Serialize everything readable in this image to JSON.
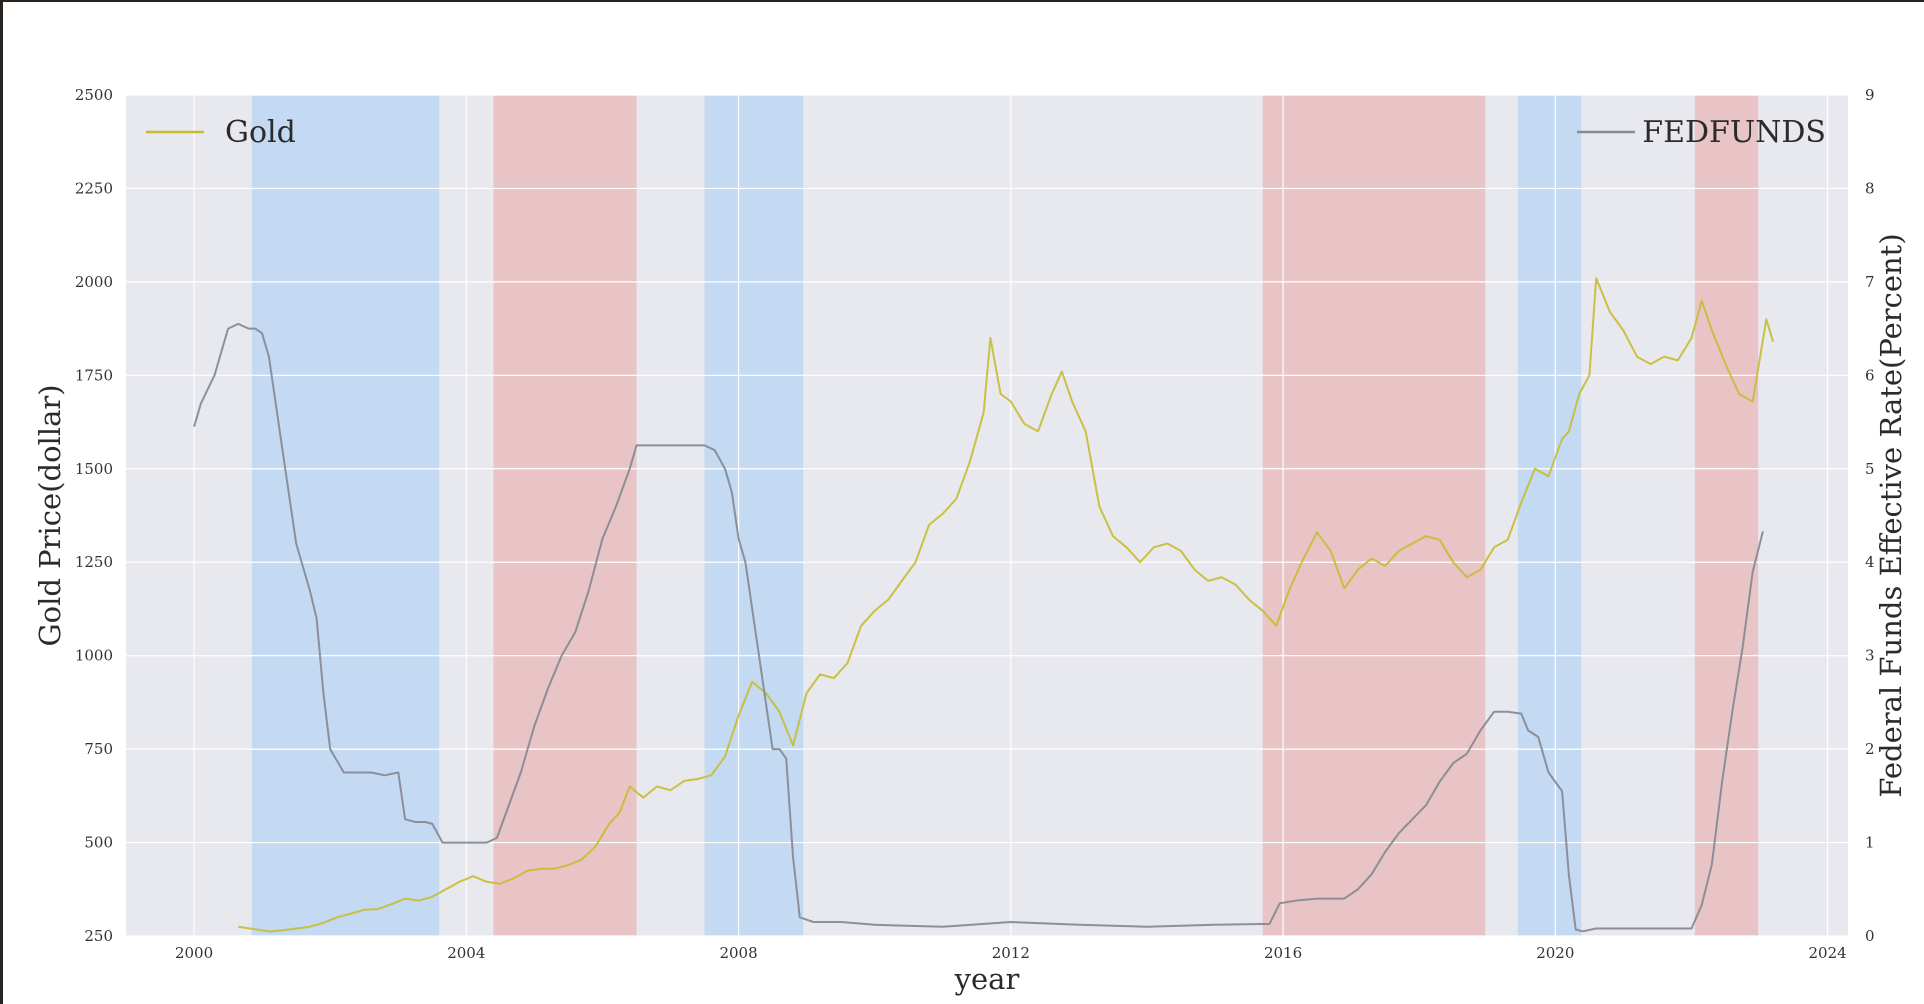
{
  "chart_data": {
    "type": "line",
    "xlabel": "year",
    "ylabel_left": "Gold Price(dollar)",
    "ylabel_right": "Federal Funds Effective Rate(Percent)",
    "xlim": [
      1999,
      2024.3
    ],
    "xticks": [
      2000,
      2004,
      2008,
      2012,
      2016,
      2020,
      2024
    ],
    "ylim_left": [
      250,
      2500
    ],
    "yticks_left": [
      250,
      500,
      750,
      1000,
      1250,
      1500,
      1750,
      2000,
      2250,
      2500
    ],
    "ylim_right": [
      0,
      9
    ],
    "yticks_right": [
      0,
      1,
      2,
      3,
      4,
      5,
      6,
      7,
      8,
      9
    ],
    "grid": true,
    "colors": {
      "plot_background": "#e8e8ef",
      "gold_line": "#c6bc30",
      "fedfunds_line": "#878b95",
      "easing_band": "#c4d9f2",
      "tightening_band": "#e8c4c6"
    },
    "legend_left": {
      "position": "top-left",
      "label": "Gold"
    },
    "legend_right": {
      "position": "top-right",
      "label": "FEDFUNDS"
    },
    "shaded_periods": [
      {
        "kind": "easing",
        "start": 2000.85,
        "end": 2003.6
      },
      {
        "kind": "tightening",
        "start": 2004.4,
        "end": 2006.5
      },
      {
        "kind": "easing",
        "start": 2007.5,
        "end": 2008.95
      },
      {
        "kind": "tightening",
        "start": 2015.7,
        "end": 2018.97
      },
      {
        "kind": "easing",
        "start": 2019.45,
        "end": 2020.38
      },
      {
        "kind": "tightening",
        "start": 2022.05,
        "end": 2022.98
      }
    ],
    "series": [
      {
        "name": "Gold",
        "axis": "left",
        "x": [
          2000.65,
          2000.9,
          2001.1,
          2001.3,
          2001.5,
          2001.7,
          2001.9,
          2002.1,
          2002.3,
          2002.5,
          2002.7,
          2002.9,
          2003.1,
          2003.3,
          2003.5,
          2003.7,
          2003.9,
          2004.1,
          2004.3,
          2004.5,
          2004.7,
          2004.9,
          2005.1,
          2005.3,
          2005.5,
          2005.7,
          2005.9,
          2006.1,
          2006.25,
          2006.4,
          2006.6,
          2006.8,
          2007.0,
          2007.2,
          2007.4,
          2007.6,
          2007.8,
          2008.0,
          2008.2,
          2008.4,
          2008.6,
          2008.8,
          2009.0,
          2009.2,
          2009.4,
          2009.6,
          2009.8,
          2010.0,
          2010.2,
          2010.4,
          2010.6,
          2010.8,
          2011.0,
          2011.2,
          2011.4,
          2011.6,
          2011.7,
          2011.85,
          2012.0,
          2012.2,
          2012.4,
          2012.6,
          2012.75,
          2012.9,
          2013.1,
          2013.3,
          2013.5,
          2013.7,
          2013.9,
          2014.1,
          2014.3,
          2014.5,
          2014.7,
          2014.9,
          2015.1,
          2015.3,
          2015.5,
          2015.7,
          2015.9,
          2016.1,
          2016.3,
          2016.5,
          2016.7,
          2016.9,
          2017.1,
          2017.3,
          2017.5,
          2017.7,
          2017.9,
          2018.1,
          2018.3,
          2018.5,
          2018.7,
          2018.9,
          2019.1,
          2019.3,
          2019.5,
          2019.7,
          2019.9,
          2020.1,
          2020.2,
          2020.35,
          2020.5,
          2020.6,
          2020.8,
          2021.0,
          2021.2,
          2021.4,
          2021.6,
          2021.8,
          2022.0,
          2022.15,
          2022.3,
          2022.5,
          2022.7,
          2022.9,
          2023.1,
          2023.2
        ],
        "values": [
          275,
          268,
          262,
          265,
          270,
          275,
          285,
          300,
          310,
          320,
          322,
          335,
          350,
          345,
          355,
          375,
          395,
          410,
          395,
          390,
          405,
          425,
          430,
          430,
          440,
          455,
          490,
          550,
          580,
          650,
          620,
          650,
          640,
          665,
          670,
          680,
          730,
          840,
          930,
          900,
          850,
          760,
          900,
          950,
          940,
          980,
          1080,
          1120,
          1150,
          1200,
          1250,
          1350,
          1380,
          1420,
          1520,
          1650,
          1850,
          1700,
          1680,
          1620,
          1600,
          1700,
          1760,
          1680,
          1600,
          1400,
          1320,
          1290,
          1250,
          1290,
          1300,
          1280,
          1230,
          1200,
          1210,
          1190,
          1150,
          1120,
          1080,
          1180,
          1260,
          1330,
          1280,
          1180,
          1230,
          1260,
          1240,
          1280,
          1300,
          1320,
          1310,
          1250,
          1210,
          1230,
          1290,
          1310,
          1410,
          1500,
          1480,
          1580,
          1600,
          1700,
          1750,
          2010,
          1920,
          1870,
          1800,
          1780,
          1800,
          1790,
          1850,
          1950,
          1870,
          1780,
          1700,
          1680,
          1900,
          1840
        ]
      },
      {
        "name": "FEDFUNDS",
        "axis": "right",
        "x": [
          2000.0,
          2000.1,
          2000.3,
          2000.5,
          2000.65,
          2000.8,
          2000.9,
          2001.0,
          2001.1,
          2001.2,
          2001.3,
          2001.5,
          2001.7,
          2001.8,
          2001.9,
          2002.0,
          2002.2,
          2002.4,
          2002.6,
          2002.8,
          2003.0,
          2003.1,
          2003.25,
          2003.4,
          2003.5,
          2003.65,
          2003.9,
          2004.1,
          2004.3,
          2004.45,
          2004.6,
          2004.8,
          2005.0,
          2005.2,
          2005.4,
          2005.6,
          2005.8,
          2006.0,
          2006.2,
          2006.4,
          2006.5,
          2006.8,
          2007.0,
          2007.3,
          2007.5,
          2007.65,
          2007.8,
          2007.9,
          2008.0,
          2008.1,
          2008.3,
          2008.5,
          2008.6,
          2008.7,
          2008.8,
          2008.9,
          2009.1,
          2009.5,
          2010.0,
          2011.0,
          2012.0,
          2013.0,
          2014.0,
          2015.0,
          2015.8,
          2015.95,
          2016.2,
          2016.5,
          2016.9,
          2017.1,
          2017.3,
          2017.5,
          2017.7,
          2017.9,
          2018.1,
          2018.3,
          2018.5,
          2018.7,
          2018.9,
          2019.1,
          2019.3,
          2019.5,
          2019.6,
          2019.75,
          2019.9,
          2020.1,
          2020.2,
          2020.3,
          2020.4,
          2020.6,
          2021.0,
          2021.5,
          2022.0,
          2022.15,
          2022.3,
          2022.45,
          2022.6,
          2022.75,
          2022.9,
          2023.05
        ],
        "values": [
          5.45,
          5.7,
          6.0,
          6.5,
          6.55,
          6.5,
          6.5,
          6.45,
          6.2,
          5.7,
          5.2,
          4.2,
          3.7,
          3.4,
          2.6,
          2.0,
          1.75,
          1.75,
          1.75,
          1.72,
          1.75,
          1.25,
          1.22,
          1.22,
          1.2,
          1.0,
          1.0,
          1.0,
          1.0,
          1.05,
          1.35,
          1.75,
          2.25,
          2.65,
          3.0,
          3.25,
          3.7,
          4.25,
          4.6,
          5.0,
          5.25,
          5.25,
          5.25,
          5.25,
          5.25,
          5.2,
          5.0,
          4.75,
          4.25,
          4.0,
          3.0,
          2.0,
          2.0,
          1.9,
          0.85,
          0.2,
          0.15,
          0.15,
          0.12,
          0.1,
          0.15,
          0.12,
          0.1,
          0.12,
          0.13,
          0.35,
          0.38,
          0.4,
          0.4,
          0.5,
          0.66,
          0.9,
          1.1,
          1.25,
          1.4,
          1.65,
          1.85,
          1.95,
          2.2,
          2.4,
          2.4,
          2.38,
          2.2,
          2.13,
          1.75,
          1.55,
          0.65,
          0.07,
          0.05,
          0.08,
          0.08,
          0.08,
          0.08,
          0.33,
          0.77,
          1.65,
          2.4,
          3.08,
          3.9,
          4.33
        ]
      }
    ]
  }
}
